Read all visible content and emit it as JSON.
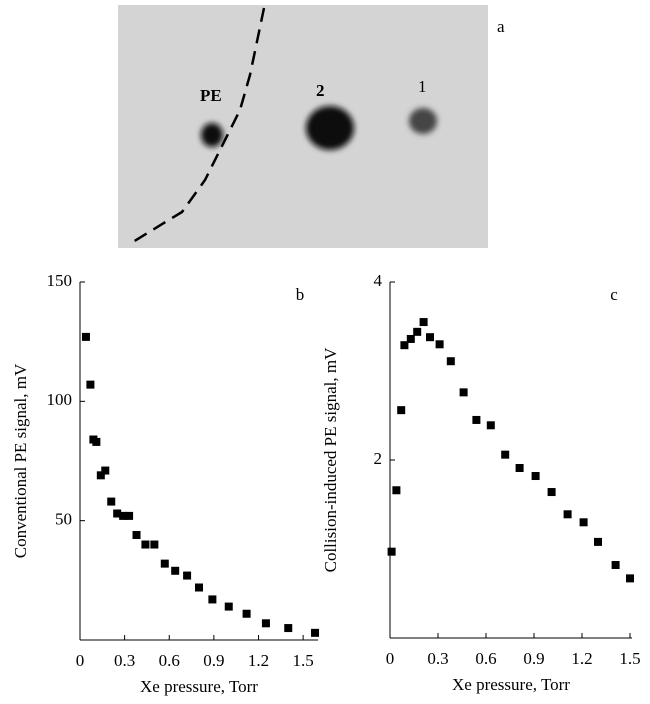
{
  "image_panel": {
    "panel_label": "a",
    "labels": [
      "PE",
      "2",
      "1"
    ]
  },
  "chart_data": [
    {
      "type": "scatter",
      "panel_label": "b",
      "x_label": "Xe pressure, Torr",
      "y_label": "Conventional PE signal, mV",
      "xlim": [
        0,
        1.6
      ],
      "ylim": [
        0,
        150
      ],
      "xticks": [
        0,
        0.3,
        0.6,
        0.9,
        1.2,
        1.5
      ],
      "yticks": [
        50,
        100,
        150
      ],
      "series": [
        {
          "color": "#000000",
          "x": [
            0.04,
            0.07,
            0.09,
            0.11,
            0.14,
            0.17,
            0.21,
            0.25,
            0.29,
            0.33,
            0.38,
            0.44,
            0.5,
            0.57,
            0.64,
            0.72,
            0.8,
            0.89,
            1.0,
            1.12,
            1.25,
            1.4,
            1.58
          ],
          "values": [
            127,
            107,
            84,
            83,
            69,
            71,
            58,
            53,
            52,
            52,
            44,
            40,
            40,
            32,
            29,
            27,
            22,
            17,
            14,
            11,
            7,
            5,
            3
          ]
        }
      ]
    },
    {
      "type": "scatter",
      "panel_label": "c",
      "x_label": "Xe pressure, Torr",
      "y_label": "Collision-induced PE signal, mV",
      "xlim": [
        0,
        1.5125
      ],
      "ylim": [
        0,
        4
      ],
      "xticks": [
        0,
        0.3,
        0.6,
        0.9,
        1.2,
        1.5
      ],
      "yticks": [
        2,
        4
      ],
      "series": [
        {
          "color": "#000000",
          "x": [
            0.01,
            0.04,
            0.07,
            0.09,
            0.13,
            0.17,
            0.21,
            0.25,
            0.31,
            0.38,
            0.46,
            0.54,
            0.63,
            0.72,
            0.81,
            0.91,
            1.01,
            1.11,
            1.21,
            1.3,
            1.41,
            1.5
          ],
          "values": [
            0.97,
            1.66,
            2.56,
            3.29,
            3.36,
            3.44,
            3.55,
            3.38,
            3.3,
            3.11,
            2.76,
            2.45,
            2.39,
            2.06,
            1.91,
            1.82,
            1.64,
            1.39,
            1.3,
            1.08,
            0.82,
            0.67
          ]
        }
      ]
    }
  ]
}
